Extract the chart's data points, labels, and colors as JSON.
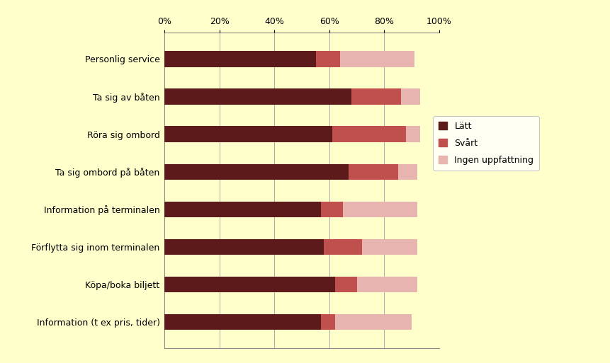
{
  "categories": [
    "Information (t ex pris, tider)",
    "Köpa/boka biljett",
    "Förflytta sig inom terminalen",
    "Information på terminalen",
    "Ta sig ombord på båten",
    "Röra sig ombord",
    "Ta sig av båten",
    "Personlig service"
  ],
  "latt": [
    57,
    62,
    58,
    57,
    67,
    61,
    68,
    55
  ],
  "svart": [
    5,
    8,
    14,
    8,
    18,
    27,
    18,
    9
  ],
  "ingen": [
    28,
    22,
    20,
    27,
    7,
    5,
    7,
    27
  ],
  "color_latt": "#5c1a1a",
  "color_svart": "#c0504d",
  "color_ingen": "#e8b4b0",
  "bg_color": "#ffffcc",
  "legend_labels": [
    "Lätt",
    "Svårt",
    "Ingen uppfattning"
  ],
  "xlim": [
    0,
    100
  ],
  "xticks": [
    0,
    20,
    40,
    60,
    80,
    100
  ],
  "xticklabels": [
    "0%",
    "20%",
    "40%",
    "60%",
    "80%",
    "100%"
  ],
  "bar_height": 0.42,
  "figsize": [
    8.61,
    5.13
  ],
  "dpi": 100
}
